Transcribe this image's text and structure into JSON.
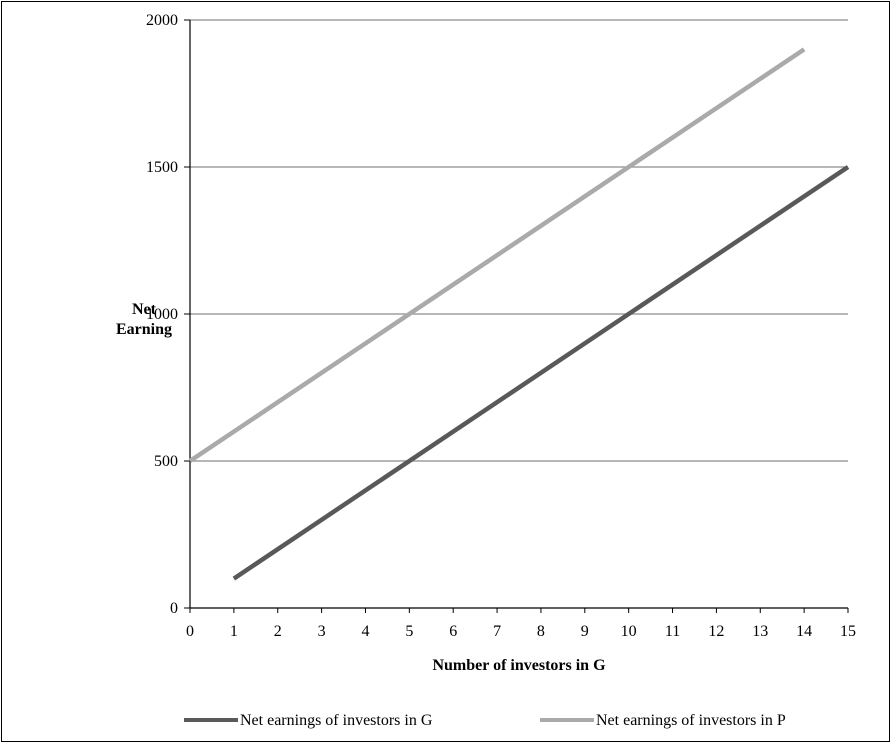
{
  "chart_data": {
    "type": "line",
    "title": "",
    "xlabel": "Number of investors in G",
    "ylabel_lines": [
      "Net",
      "Earning"
    ],
    "x_ticks": [
      0,
      1,
      2,
      3,
      4,
      5,
      6,
      7,
      8,
      9,
      10,
      11,
      12,
      13,
      14,
      15
    ],
    "y_ticks": [
      0,
      500,
      1000,
      1500,
      2000
    ],
    "xlim": [
      0,
      15
    ],
    "ylim": [
      0,
      2000
    ],
    "grid": "horizontal",
    "legend_position": "bottom",
    "series": [
      {
        "name": "Net earnings of investors in G",
        "color": "#595959",
        "points": [
          [
            1,
            100
          ],
          [
            15,
            1500
          ]
        ]
      },
      {
        "name": "Net earnings of investors in P",
        "color": "#aaaaaa",
        "points": [
          [
            0,
            500
          ],
          [
            14,
            1900
          ]
        ]
      }
    ]
  }
}
